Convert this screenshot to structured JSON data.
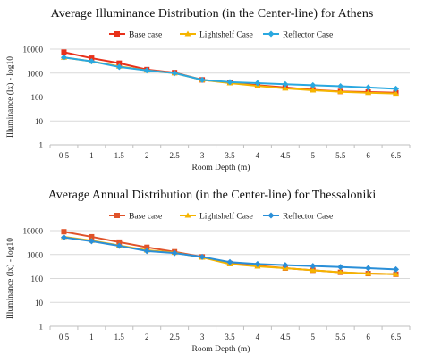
{
  "chart_data": [
    {
      "type": "line",
      "title": "Average Illuminance Distribution  (in the Center-line)  for Athens",
      "xlabel": "Room Depth (m)",
      "ylabel": "Illuminance (lx) - log10",
      "categories": [
        "0.5",
        "1",
        "1.5",
        "2",
        "2.5",
        "3",
        "3.5",
        "4",
        "4.5",
        "5",
        "5.5",
        "6",
        "6.5"
      ],
      "yscale": "log",
      "ylim": [
        1,
        10000
      ],
      "yticks": [
        "1",
        "10",
        "100",
        "1000",
        "10000"
      ],
      "grid": true,
      "legend_position": "top-right",
      "series": [
        {
          "name": "Base case",
          "color": "#e8311a",
          "marker": "square",
          "values": [
            7500,
            4200,
            2600,
            1400,
            1050,
            520,
            400,
            310,
            250,
            200,
            170,
            160,
            150
          ]
        },
        {
          "name": "Lightshelf Case",
          "color": "#f5b400",
          "marker": "triangle",
          "values": [
            4500,
            3100,
            1900,
            1300,
            1000,
            520,
            380,
            290,
            230,
            190,
            165,
            150,
            140
          ]
        },
        {
          "name": "Reflector Case",
          "color": "#2aa8e0",
          "marker": "diamond",
          "values": [
            4500,
            3100,
            1800,
            1300,
            1000,
            520,
            420,
            380,
            340,
            310,
            280,
            250,
            220
          ]
        }
      ]
    },
    {
      "type": "line",
      "title": "Average Annual Distribution  (in the Center-line)  for Thessaloniki",
      "xlabel": "Room Depth (m)",
      "ylabel": "Illuminance (lx) - log10",
      "categories": [
        "0.5",
        "1",
        "1.5",
        "2",
        "2.5",
        "3",
        "3.5",
        "4",
        "4.5",
        "5",
        "5.5",
        "6",
        "6.5"
      ],
      "yscale": "log",
      "ylim": [
        1,
        10000
      ],
      "yticks": [
        "1",
        "10",
        "100",
        "1000",
        "10000"
      ],
      "grid": true,
      "legend_position": "top-right",
      "series": [
        {
          "name": "Base case",
          "color": "#e0532a",
          "marker": "square",
          "values": [
            9000,
            5500,
            3300,
            2000,
            1300,
            800,
            420,
            340,
            270,
            220,
            180,
            160,
            150
          ]
        },
        {
          "name": "Lightshelf Case",
          "color": "#f5b400",
          "marker": "triangle",
          "values": [
            5500,
            3800,
            2400,
            1500,
            1200,
            760,
            400,
            320,
            270,
            220,
            180,
            160,
            150
          ]
        },
        {
          "name": "Reflector Case",
          "color": "#2a8fd8",
          "marker": "diamond",
          "values": [
            5200,
            3600,
            2300,
            1400,
            1150,
            800,
            480,
            400,
            360,
            330,
            300,
            270,
            240
          ]
        }
      ]
    }
  ]
}
